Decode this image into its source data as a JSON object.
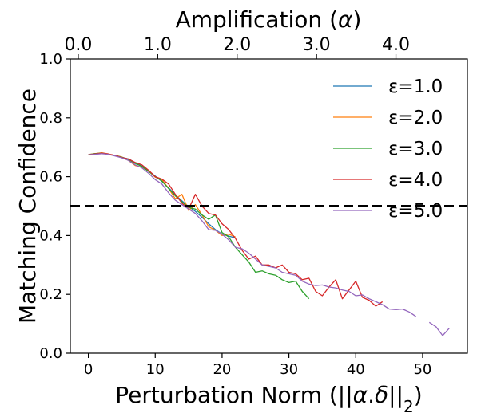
{
  "chart_data": {
    "type": "line",
    "xlabel": "Perturbation Norm ($||\\alpha.\\delta||_2$)",
    "xlabel_parts": [
      "Perturbation Norm (||",
      "α",
      ".",
      "δ",
      "||",
      "2",
      ")"
    ],
    "ylabel": "Matching Confidence",
    "top_xlabel": "Amplification ($\\alpha$)",
    "top_xlabel_parts": [
      "Amplification (",
      "α",
      ")"
    ],
    "xlim": [
      -2.7,
      56.7
    ],
    "ylim": [
      0.0,
      1.0
    ],
    "x_ticks": [
      "0",
      "10",
      "20",
      "30",
      "40",
      "50"
    ],
    "y_ticks": [
      "0.0",
      "0.2",
      "0.4",
      "0.6",
      "0.8",
      "1.0"
    ],
    "top_ticks": [
      "0.0",
      "1.0",
      "2.0",
      "3.0",
      "4.0"
    ],
    "top_xlim": [
      -0.1,
      4.9
    ],
    "threshold": 0.5,
    "legend_position": "upper right",
    "grid": false,
    "series": [
      {
        "name": "ε=1.0",
        "color": "#1f77b4",
        "x": [
          0,
          1,
          2,
          3,
          4,
          5,
          6,
          7,
          8,
          9,
          10,
          11,
          12,
          13,
          14,
          15,
          16,
          17,
          18,
          19,
          20,
          21,
          22
        ],
        "y": [
          0.675,
          0.678,
          0.68,
          0.676,
          0.672,
          0.666,
          0.66,
          0.648,
          0.636,
          0.62,
          0.602,
          0.584,
          0.562,
          0.538,
          0.518,
          0.498,
          0.482,
          0.462,
          0.44,
          0.42,
          0.405,
          0.398,
          0.392
        ]
      },
      {
        "name": "ε=2.0",
        "color": "#ff7f0e",
        "x": [
          0,
          1,
          2,
          3,
          4,
          5,
          6,
          7,
          8,
          9,
          10,
          11,
          12,
          13,
          14,
          15,
          16,
          17,
          18,
          19,
          20,
          21,
          22
        ],
        "y": [
          0.675,
          0.678,
          0.681,
          0.677,
          0.672,
          0.667,
          0.655,
          0.638,
          0.632,
          0.62,
          0.598,
          0.59,
          0.56,
          0.525,
          0.54,
          0.485,
          0.505,
          0.47,
          0.43,
          0.418,
          0.4,
          0.405,
          0.395
        ]
      },
      {
        "name": "ε=3.0",
        "color": "#2ca02c",
        "x": [
          0,
          1,
          2,
          3,
          4,
          5,
          6,
          7,
          8,
          9,
          10,
          11,
          12,
          13,
          14,
          15,
          16,
          17,
          18,
          19,
          20,
          21,
          22,
          23,
          24,
          25,
          26,
          27,
          28,
          29,
          30,
          31,
          32,
          33
        ],
        "y": [
          0.674,
          0.678,
          0.68,
          0.676,
          0.672,
          0.666,
          0.658,
          0.645,
          0.635,
          0.618,
          0.6,
          0.585,
          0.56,
          0.535,
          0.515,
          0.495,
          0.49,
          0.47,
          0.455,
          0.47,
          0.41,
          0.395,
          0.36,
          0.335,
          0.31,
          0.275,
          0.28,
          0.27,
          0.265,
          0.25,
          0.24,
          0.245,
          0.21,
          0.185
        ]
      },
      {
        "name": "ε=4.0",
        "color": "#d62728",
        "x": [
          0,
          1,
          2,
          3,
          4,
          5,
          6,
          7,
          8,
          9,
          10,
          11,
          12,
          13,
          14,
          15,
          16,
          17,
          18,
          19,
          20,
          21,
          22,
          23,
          24,
          25,
          26,
          27,
          28,
          29,
          30,
          31,
          32,
          33,
          34,
          35,
          36,
          37,
          38,
          39,
          40,
          41,
          42,
          43,
          44
        ],
        "y": [
          0.674,
          0.677,
          0.68,
          0.677,
          0.672,
          0.665,
          0.66,
          0.648,
          0.64,
          0.622,
          0.6,
          0.592,
          0.575,
          0.54,
          0.51,
          0.49,
          0.54,
          0.5,
          0.475,
          0.47,
          0.44,
          0.42,
          0.39,
          0.35,
          0.32,
          0.33,
          0.3,
          0.3,
          0.29,
          0.3,
          0.275,
          0.27,
          0.25,
          0.255,
          0.21,
          0.195,
          0.225,
          0.25,
          0.185,
          0.215,
          0.245,
          0.19,
          0.18,
          0.16,
          0.175
        ]
      },
      {
        "name": "ε=5.0",
        "color": "#9467bd",
        "x": [
          0,
          1,
          2,
          3,
          4,
          5,
          6,
          7,
          8,
          9,
          10,
          11,
          12,
          13,
          14,
          15,
          16,
          17,
          18,
          19,
          20,
          21,
          22,
          23,
          24,
          25,
          26,
          27,
          28,
          29,
          30,
          31,
          32,
          33,
          34,
          35,
          36,
          37,
          38,
          39,
          40,
          41,
          42,
          43,
          44,
          45,
          46,
          47,
          48,
          49,
          null,
          51,
          52,
          53,
          54
        ],
        "y": [
          0.674,
          0.676,
          0.678,
          0.676,
          0.67,
          0.664,
          0.655,
          0.64,
          0.63,
          0.612,
          0.59,
          0.575,
          0.545,
          0.52,
          0.505,
          0.49,
          0.475,
          0.45,
          0.42,
          0.418,
          0.405,
          0.385,
          0.36,
          0.355,
          0.34,
          0.32,
          0.3,
          0.295,
          0.29,
          0.275,
          0.27,
          0.265,
          0.245,
          0.235,
          0.23,
          0.232,
          0.225,
          0.222,
          0.215,
          0.21,
          0.195,
          0.198,
          0.185,
          0.175,
          0.165,
          0.15,
          0.148,
          0.15,
          0.14,
          0.125,
          null,
          0.105,
          0.09,
          0.06,
          0.085
        ]
      }
    ]
  }
}
